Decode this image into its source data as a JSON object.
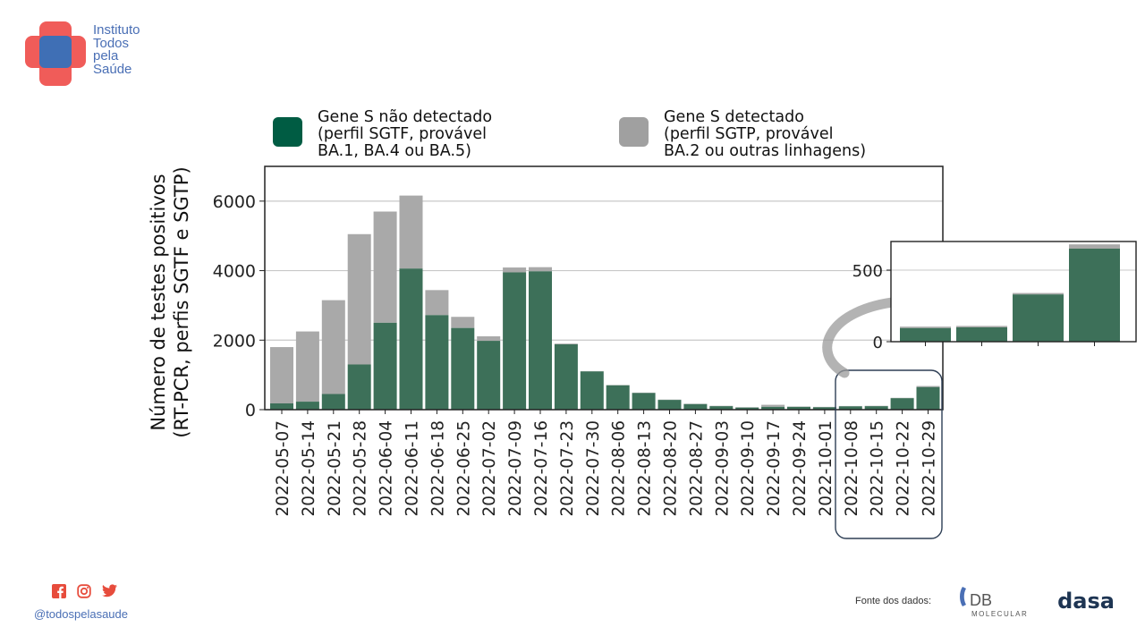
{
  "org": {
    "name_lines": [
      "Instituto",
      "Todos",
      "pela",
      "Saúde"
    ],
    "brand_colors": {
      "red": "#ef5350",
      "blue": "#3f6fb5"
    }
  },
  "chart_data": {
    "type": "bar",
    "stacked": true,
    "ylabel_lines": [
      "Número de testes positivos",
      "(RT-PCR, perfis SGTF e SGTP)"
    ],
    "ylim": [
      0,
      7000
    ],
    "yticks": [
      0,
      2000,
      4000,
      6000
    ],
    "grid": "horizontal",
    "legend_position": "top",
    "categories": [
      "2022-05-07",
      "2022-05-14",
      "2022-05-21",
      "2022-05-28",
      "2022-06-04",
      "2022-06-11",
      "2022-06-18",
      "2022-06-25",
      "2022-07-02",
      "2022-07-09",
      "2022-07-16",
      "2022-07-23",
      "2022-07-30",
      "2022-08-06",
      "2022-08-13",
      "2022-08-20",
      "2022-08-27",
      "2022-09-03",
      "2022-09-10",
      "2022-09-17",
      "2022-09-24",
      "2022-10-01",
      "2022-10-08",
      "2022-10-15",
      "2022-10-22",
      "2022-10-29"
    ],
    "series": [
      {
        "legend_lines": [
          "Gene S não detectado",
          "(perfil SGTF, provável",
          "BA.1, BA.4 ou BA.5)"
        ],
        "color": "#3d7059",
        "legend_color": "#005c43",
        "values": [
          180,
          230,
          450,
          1300,
          2500,
          4060,
          2720,
          2350,
          1980,
          3950,
          3980,
          1880,
          1100,
          700,
          480,
          280,
          160,
          100,
          60,
          80,
          80,
          70,
          95,
          100,
          330,
          650
        ]
      },
      {
        "legend_lines": [
          "Gene S detectado",
          "(perfil SGTP, provável",
          "BA.2 ou outras linhagens)"
        ],
        "color": "#a9a9a9",
        "legend_color": "#a0a0a0",
        "values": [
          1620,
          2020,
          2700,
          3750,
          3200,
          2100,
          720,
          320,
          130,
          140,
          120,
          20,
          10,
          10,
          10,
          10,
          10,
          10,
          10,
          60,
          10,
          10,
          10,
          10,
          10,
          30
        ]
      }
    ],
    "inset": {
      "yticks": [
        0,
        500
      ],
      "ylim": [
        0,
        700
      ],
      "category_indices": [
        22,
        23,
        24,
        25
      ]
    }
  },
  "footer": {
    "handle": "@todospelasaude",
    "social_icons": [
      "facebook-icon",
      "instagram-icon",
      "twitter-icon"
    ],
    "source_label": "Fonte dos dados:",
    "db_logo": {
      "main": "DB",
      "sub": "MOLECULAR"
    },
    "dasa_logo": "dasa"
  }
}
